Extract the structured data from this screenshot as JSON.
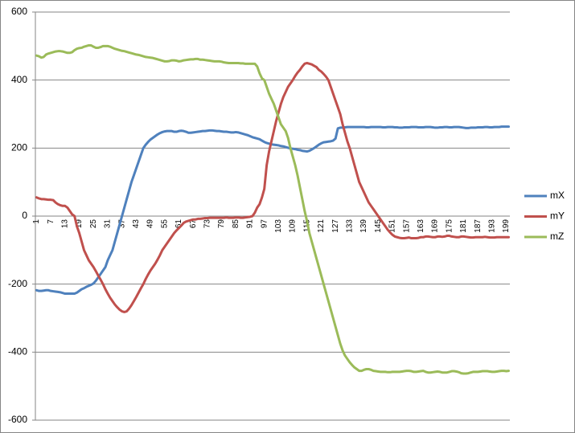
{
  "chart_data": {
    "type": "line",
    "categories": [
      1,
      null,
      null,
      null,
      null,
      null,
      7,
      null,
      null,
      null,
      null,
      null,
      13,
      null,
      null,
      null,
      null,
      null,
      19,
      null,
      null,
      null,
      null,
      null,
      25,
      null,
      null,
      null,
      null,
      null,
      31,
      null,
      null,
      null,
      null,
      null,
      37,
      null,
      null,
      null,
      null,
      null,
      43,
      null,
      null,
      null,
      null,
      null,
      49,
      null,
      null,
      null,
      null,
      null,
      55,
      null,
      null,
      null,
      null,
      null,
      61,
      null,
      null,
      null,
      null,
      null,
      67,
      null,
      null,
      null,
      null,
      null,
      73,
      null,
      null,
      null,
      null,
      null,
      79,
      null,
      null,
      null,
      null,
      null,
      85,
      null,
      null,
      null,
      null,
      null,
      91,
      null,
      null,
      null,
      null,
      null,
      97,
      null,
      null,
      null,
      null,
      null,
      103,
      null,
      null,
      null,
      null,
      null,
      109,
      null,
      null,
      null,
      null,
      null,
      115,
      null,
      null,
      null,
      null,
      null,
      121,
      null,
      null,
      null,
      null,
      null,
      127,
      null,
      null,
      null,
      null,
      null,
      133,
      null,
      null,
      null,
      null,
      null,
      139,
      null,
      null,
      null,
      null,
      null,
      145,
      null,
      null,
      null,
      null,
      null,
      151,
      null,
      null,
      null,
      null,
      null,
      157,
      null,
      null,
      null,
      null,
      null,
      163,
      null,
      null,
      null,
      null,
      null,
      169,
      null,
      null,
      null,
      null,
      null,
      175,
      null,
      null,
      null,
      null,
      null,
      181,
      null,
      null,
      null,
      null,
      null,
      187,
      null,
      null,
      null,
      null,
      null,
      193,
      null,
      null,
      null,
      null,
      null,
      199,
      null
    ],
    "series": [
      {
        "name": "mX",
        "color": "#4f81bd",
        "values": [
          -218,
          -220,
          -220,
          -219,
          -218,
          -218,
          -220,
          -221,
          -222,
          -223,
          -224,
          -226,
          -228,
          -228,
          -228,
          -228,
          -228,
          -225,
          -220,
          -215,
          -212,
          -208,
          -205,
          -202,
          -198,
          -190,
          -180,
          -170,
          -160,
          -150,
          -130,
          -115,
          -100,
          -75,
          -50,
          -25,
          0,
          25,
          50,
          75,
          100,
          120,
          140,
          160,
          180,
          200,
          210,
          218,
          225,
          230,
          235,
          240,
          244,
          247,
          249,
          250,
          250,
          250,
          248,
          248,
          250,
          251,
          250,
          248,
          245,
          245,
          246,
          247,
          248,
          249,
          250,
          250,
          251,
          252,
          252,
          251,
          250,
          250,
          249,
          248,
          248,
          247,
          246,
          246,
          247,
          246,
          244,
          242,
          240,
          238,
          235,
          232,
          230,
          228,
          226,
          222,
          218,
          215,
          213,
          211,
          210,
          209,
          208,
          206,
          205,
          203,
          201,
          199,
          198,
          197,
          195,
          194,
          192,
          191,
          190,
          192,
          196,
          200,
          205,
          210,
          214,
          217,
          218,
          219,
          220,
          222,
          228,
          258,
          260,
          260,
          261,
          262,
          262,
          262,
          262,
          262,
          262,
          262,
          262,
          261,
          261,
          262,
          262,
          262,
          262,
          262,
          261,
          261,
          262,
          262,
          262,
          261,
          261,
          260,
          260,
          261,
          261,
          261,
          262,
          262,
          262,
          261,
          261,
          261,
          262,
          262,
          262,
          261,
          260,
          260,
          261,
          261,
          262,
          262,
          261,
          261,
          262,
          262,
          262,
          261,
          260,
          259,
          259,
          260,
          260,
          260,
          261,
          261,
          261,
          262,
          262,
          261,
          261,
          262,
          262,
          262,
          263,
          263,
          263,
          263
        ]
      },
      {
        "name": "mY",
        "color": "#c0504d",
        "values": [
          55,
          52,
          50,
          50,
          49,
          48,
          48,
          47,
          40,
          35,
          32,
          30,
          30,
          25,
          15,
          5,
          0,
          -30,
          -50,
          -75,
          -100,
          -115,
          -130,
          -140,
          -150,
          -162,
          -175,
          -187,
          -200,
          -215,
          -228,
          -240,
          -250,
          -260,
          -268,
          -275,
          -280,
          -282,
          -280,
          -272,
          -262,
          -250,
          -238,
          -225,
          -212,
          -200,
          -185,
          -172,
          -160,
          -150,
          -140,
          -128,
          -115,
          -100,
          -90,
          -80,
          -70,
          -60,
          -50,
          -42,
          -35,
          -28,
          -20,
          -16,
          -14,
          -12,
          -10,
          -10,
          -8,
          -8,
          -7,
          -6,
          -6,
          -5,
          -5,
          -5,
          -5,
          -5,
          -5,
          -5,
          -4,
          -5,
          -5,
          -5,
          -4,
          -4,
          -5,
          -5,
          -4,
          -3,
          -2,
          0,
          10,
          25,
          35,
          55,
          80,
          150,
          190,
          220,
          250,
          280,
          305,
          330,
          350,
          365,
          380,
          390,
          400,
          412,
          422,
          430,
          440,
          448,
          450,
          448,
          446,
          442,
          438,
          430,
          425,
          418,
          410,
          400,
          380,
          360,
          340,
          320,
          300,
          270,
          245,
          220,
          200,
          175,
          150,
          125,
          100,
          85,
          70,
          55,
          40,
          30,
          20,
          10,
          0,
          -10,
          -20,
          -30,
          -40,
          -48,
          -55,
          -60,
          -62,
          -64,
          -65,
          -65,
          -64,
          -63,
          -65,
          -65,
          -65,
          -64,
          -62,
          -62,
          -60,
          -60,
          -61,
          -62,
          -62,
          -60,
          -60,
          -61,
          -60,
          -58,
          -58,
          -60,
          -61,
          -62,
          -62,
          -60,
          -60,
          -61,
          -62,
          -63,
          -63,
          -62,
          -62,
          -62,
          -62,
          -61,
          -62,
          -63,
          -63,
          -63,
          -62,
          -62,
          -62,
          -62,
          -62,
          -62
        ]
      },
      {
        "name": "mZ",
        "color": "#9bbb59",
        "values": [
          472,
          470,
          466,
          468,
          475,
          478,
          480,
          482,
          484,
          485,
          485,
          484,
          482,
          480,
          480,
          482,
          488,
          492,
          494,
          495,
          498,
          500,
          502,
          502,
          498,
          495,
          495,
          497,
          500,
          500,
          500,
          498,
          495,
          492,
          490,
          488,
          486,
          485,
          483,
          481,
          479,
          477,
          475,
          474,
          472,
          470,
          468,
          467,
          466,
          465,
          463,
          461,
          459,
          457,
          455,
          455,
          456,
          458,
          458,
          457,
          455,
          456,
          458,
          459,
          460,
          461,
          461,
          462,
          462,
          460,
          460,
          459,
          458,
          457,
          456,
          455,
          455,
          455,
          454,
          452,
          451,
          450,
          450,
          450,
          450,
          450,
          449,
          449,
          448,
          448,
          448,
          448,
          448,
          440,
          420,
          405,
          400,
          380,
          360,
          345,
          330,
          310,
          290,
          270,
          260,
          250,
          230,
          200,
          175,
          150,
          120,
          85,
          50,
          15,
          -15,
          -50,
          -75,
          -100,
          -125,
          -150,
          -175,
          -200,
          -225,
          -250,
          -275,
          -300,
          -325,
          -350,
          -375,
          -395,
          -410,
          -420,
          -430,
          -438,
          -445,
          -450,
          -455,
          -455,
          -452,
          -450,
          -450,
          -452,
          -455,
          -456,
          -457,
          -458,
          -458,
          -458,
          -459,
          -459,
          -458,
          -458,
          -458,
          -458,
          -457,
          -456,
          -455,
          -455,
          -456,
          -458,
          -458,
          -457,
          -456,
          -455,
          -458,
          -460,
          -460,
          -459,
          -458,
          -457,
          -458,
          -460,
          -460,
          -460,
          -458,
          -456,
          -456,
          -457,
          -459,
          -462,
          -463,
          -463,
          -462,
          -460,
          -458,
          -458,
          -458,
          -457,
          -456,
          -456,
          -456,
          -457,
          -458,
          -458,
          -457,
          -456,
          -455,
          -455,
          -456,
          -455
        ]
      }
    ],
    "ylim": [
      -600,
      600
    ],
    "yticks": [
      -600,
      -400,
      -200,
      0,
      200,
      400,
      600
    ],
    "grid": true,
    "legend": "right"
  }
}
